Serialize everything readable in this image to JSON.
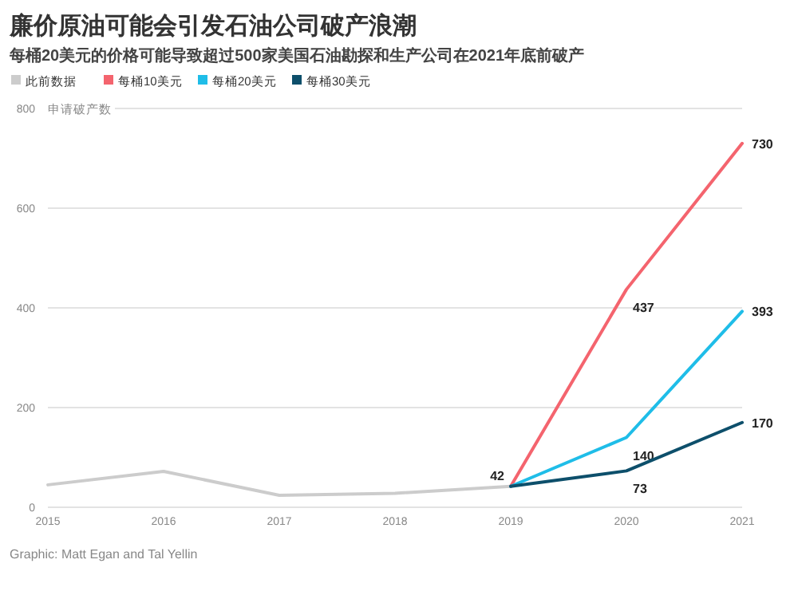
{
  "chart_data": {
    "type": "line",
    "title": "廉价原油可能会引发石油公司破产浪潮",
    "subtitle": "每桶20美元的价格可能导致超过500家美国石油勘探和生产公司在2021年底前破产",
    "ylabel": "申请破产数",
    "xlim": [
      2015,
      2021
    ],
    "xticks": [
      2015,
      2016,
      2017,
      2018,
      2019,
      2020,
      2021
    ],
    "ylim": [
      0,
      800
    ],
    "yticks": [
      0,
      200,
      400,
      600,
      800
    ],
    "grid": "y",
    "legend": "top left",
    "marker": "none",
    "line_style": "solid",
    "series": [
      {
        "name": "此前数据",
        "color": "#cccccc",
        "x": [
          2015,
          2016,
          2017,
          2018,
          2019
        ],
        "values": [
          45,
          72,
          24,
          28,
          42
        ]
      },
      {
        "name": "每桶10美元",
        "color": "#f4646e",
        "x": [
          2019,
          2020,
          2021
        ],
        "values": [
          42,
          437,
          730
        ],
        "value_labels": [
          "42",
          "437",
          "730"
        ]
      },
      {
        "name": "每桶20美元",
        "color": "#1fbde8",
        "x": [
          2019,
          2020,
          2021
        ],
        "values": [
          42,
          140,
          393
        ],
        "value_labels": [
          null,
          "140",
          "393"
        ]
      },
      {
        "name": "每桶30美元",
        "color": "#0d4f6b",
        "x": [
          2019,
          2020,
          2021
        ],
        "values": [
          42,
          73,
          170
        ],
        "value_labels": [
          null,
          "73",
          "170"
        ]
      }
    ],
    "annotations": [
      "Graphic: Matt Egan and Tal Yellin"
    ]
  }
}
